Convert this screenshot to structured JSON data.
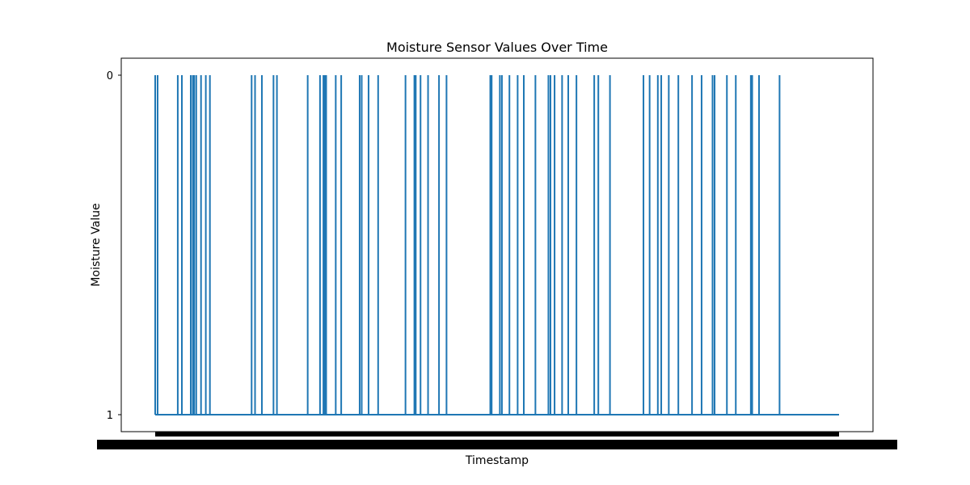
{
  "chart_data": {
    "type": "line",
    "title": "Moisture Sensor Values Over Time",
    "xlabel": "Timestamp",
    "ylabel": "Moisture Value",
    "y_categories": [
      "0",
      "1"
    ],
    "x_ticklabels": "illegible (densely overlapping timestamp labels)",
    "grid": false,
    "series": [
      {
        "color": "#1f77b4",
        "baseline": "1",
        "drop_to_zero_at_x_fraction": [
          0.0,
          0.0035,
          0.033,
          0.039,
          0.052,
          0.055,
          0.057,
          0.06,
          0.067,
          0.074,
          0.08,
          0.141,
          0.146,
          0.156,
          0.173,
          0.178,
          0.223,
          0.241,
          0.246,
          0.248,
          0.25,
          0.264,
          0.272,
          0.299,
          0.302,
          0.312,
          0.326,
          0.366,
          0.379,
          0.381,
          0.388,
          0.399,
          0.415,
          0.426,
          0.49,
          0.492,
          0.504,
          0.507,
          0.518,
          0.53,
          0.539,
          0.556,
          0.575,
          0.578,
          0.584,
          0.595,
          0.604,
          0.616,
          0.642,
          0.648,
          0.665,
          0.714,
          0.723,
          0.735,
          0.74,
          0.751,
          0.765,
          0.785,
          0.799,
          0.815,
          0.818,
          0.836,
          0.849,
          0.871,
          0.873,
          0.883,
          0.913
        ]
      }
    ]
  }
}
